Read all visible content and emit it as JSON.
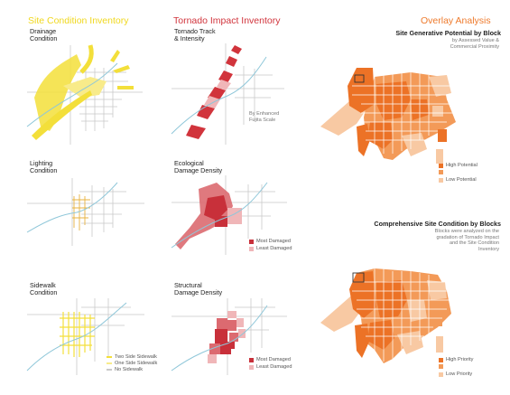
{
  "columns": {
    "site": {
      "title": "Site Condition Inventory",
      "color": "#f0d81e",
      "panels": {
        "drainage": "Drainage\nCondition",
        "lighting": "Lighting\nCondition",
        "sidewalk": "Sidewalk\nCondition"
      },
      "sidewalk_legend": [
        "Two Side Sidewalk",
        "One Side Sidewalk",
        "No Sidewalk"
      ]
    },
    "tornado": {
      "title": "Tornado Impact Inventory",
      "color": "#d1343c",
      "panels": {
        "track": "Tornado Track\n& Intensity",
        "ecological": "Ecological\nDamage Density",
        "structural": "Structural\nDamage Density"
      },
      "track_note": "By Enhanced\nFujita Scale",
      "damage_legend": [
        "Most Damaged",
        "Least Damaged"
      ]
    },
    "overlay": {
      "title": "Overlay Analysis",
      "color": "#ee7a2c",
      "generative": {
        "title": "Site Generative Potential by Block",
        "note": "by Assessed Value &\nCommercial Proximity",
        "legend": [
          "High Potential",
          "",
          "Low Potential"
        ]
      },
      "comprehensive": {
        "title": "Comprehensive Site Condition by Blocks",
        "note": "Blocks were analyzed on the\ngradation of Tornado Impact\nand the Site Condition\nInventory",
        "legend": [
          "High Priority",
          "",
          "Low Priority"
        ]
      }
    }
  },
  "palette": {
    "street": "#c9c9c9",
    "river": "#8fc7d9",
    "yellow": "#f3df3a",
    "yellow_light": "#f8eb8a",
    "red_dark": "#c8303a",
    "red_mid": "#dc6a70",
    "red_light": "#f0b6b8",
    "orange_dark": "#ec7226",
    "orange_mid": "#f39a58",
    "orange_light": "#f8c9a3"
  }
}
